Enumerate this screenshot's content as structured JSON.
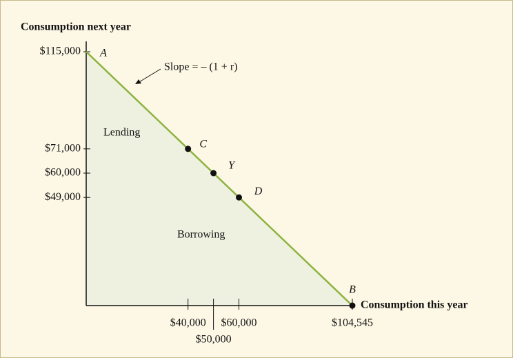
{
  "chart_data": {
    "type": "line",
    "y_label": "Consumption next year",
    "x_label": "Consumption this year",
    "xlim": [
      0,
      104545
    ],
    "ylim": [
      0,
      115000
    ],
    "xticks": [
      {
        "value": 40000,
        "label": "$40,000"
      },
      {
        "value": 50000,
        "label": "$50,000"
      },
      {
        "value": 60000,
        "label": "$60,000"
      },
      {
        "value": 104545,
        "label": "$104,545"
      }
    ],
    "yticks": [
      {
        "value": 115000,
        "label": "$115,000"
      },
      {
        "value": 71000,
        "label": "$71,000"
      },
      {
        "value": 60000,
        "label": "$60,000"
      },
      {
        "value": 49000,
        "label": "$49,000"
      }
    ],
    "series": [
      {
        "color": "#8cb33f",
        "x": [
          0,
          104545
        ],
        "values": [
          115000,
          0
        ]
      }
    ],
    "area_color": "#eef0e0",
    "points": [
      {
        "label": "A",
        "x": 0,
        "y": 115000,
        "marker": false
      },
      {
        "label": "C",
        "x": 40000,
        "y": 71000,
        "marker": true
      },
      {
        "label": "Y",
        "x": 50000,
        "y": 60000,
        "marker": true
      },
      {
        "label": "D",
        "x": 60000,
        "y": 49000,
        "marker": true
      },
      {
        "label": "B",
        "x": 104545,
        "y": 0,
        "marker": true
      }
    ],
    "region_labels": [
      "Lending",
      "Borrowing"
    ],
    "slope_label": "Slope = – (1 + r)"
  }
}
